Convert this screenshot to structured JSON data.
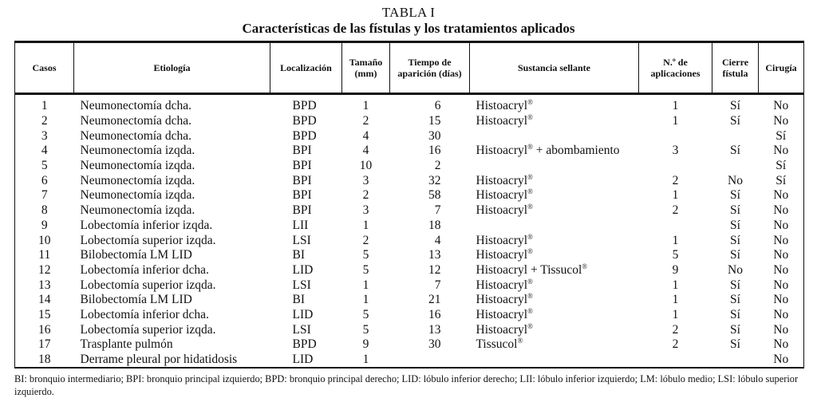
{
  "title": "TABLA I",
  "subtitle": "Características de las fístulas y los tratamientos aplicados",
  "columns": [
    "Casos",
    "Etiología",
    "Localización",
    "Tamaño (mm)",
    "Tiempo de aparición (días)",
    "Sustancia sellante",
    "N.º de aplicaciones",
    "Cierre fístula",
    "Cirugía"
  ],
  "rows": [
    {
      "caso": "1",
      "etiologia": "Neumonectomía dcha.",
      "loc": "BPD",
      "tamano": "1",
      "tiempo": "6",
      "sustancia": "Histoacryl",
      "sup": "®",
      "extra": "",
      "aplic": "1",
      "cierre": "Sí",
      "cirugia": "No"
    },
    {
      "caso": "2",
      "etiologia": "Neumonectomía dcha.",
      "loc": "BPD",
      "tamano": "2",
      "tiempo": "15",
      "sustancia": "Histoacryl",
      "sup": "®",
      "extra": "",
      "aplic": "1",
      "cierre": "Sí",
      "cirugia": "No"
    },
    {
      "caso": "3",
      "etiologia": "Neumonectomía dcha.",
      "loc": "BPD",
      "tamano": "4",
      "tiempo": "30",
      "sustancia": "",
      "sup": "",
      "extra": "",
      "aplic": "",
      "cierre": "",
      "cirugia": "Sí"
    },
    {
      "caso": "4",
      "etiologia": "Neumonectomía izqda.",
      "loc": "BPI",
      "tamano": "4",
      "tiempo": "16",
      "sustancia": "Histoacryl",
      "sup": "®",
      "extra": " + abombamiento",
      "aplic": "3",
      "cierre": "Sí",
      "cirugia": "No"
    },
    {
      "caso": "5",
      "etiologia": "Neumonectomía izqda.",
      "loc": "BPI",
      "tamano": "10",
      "tiempo": "2",
      "sustancia": "",
      "sup": "",
      "extra": "",
      "aplic": "",
      "cierre": "",
      "cirugia": "Sí"
    },
    {
      "caso": "6",
      "etiologia": "Neumonectomía izqda.",
      "loc": "BPI",
      "tamano": "3",
      "tiempo": "32",
      "sustancia": "Histoacryl",
      "sup": "®",
      "extra": "",
      "aplic": "2",
      "cierre": "No",
      "cirugia": "Sí"
    },
    {
      "caso": "7",
      "etiologia": "Neumonectomía izqda.",
      "loc": "BPI",
      "tamano": "2",
      "tiempo": "58",
      "sustancia": "Histoacryl",
      "sup": "®",
      "extra": "",
      "aplic": "1",
      "cierre": "Sí",
      "cirugia": "No"
    },
    {
      "caso": "8",
      "etiologia": "Neumonectomía izqda.",
      "loc": "BPI",
      "tamano": "3",
      "tiempo": "7",
      "sustancia": "Histoacryl",
      "sup": "®",
      "extra": "",
      "aplic": "2",
      "cierre": "Sí",
      "cirugia": "No"
    },
    {
      "caso": "9",
      "etiologia": "Lobectomía inferior izqda.",
      "loc": "LII",
      "tamano": "1",
      "tiempo": "18",
      "sustancia": "",
      "sup": "",
      "extra": "",
      "aplic": "",
      "cierre": "Sí",
      "cirugia": "No"
    },
    {
      "caso": "10",
      "etiologia": "Lobectomía superior izqda.",
      "loc": "LSI",
      "tamano": "2",
      "tiempo": "4",
      "sustancia": "Histoacryl",
      "sup": "®",
      "extra": "",
      "aplic": "1",
      "cierre": "Sí",
      "cirugia": "No"
    },
    {
      "caso": "11",
      "etiologia": "Bilobectomía LM LID",
      "loc": "BI",
      "tamano": "5",
      "tiempo": "13",
      "sustancia": "Histoacryl",
      "sup": "®",
      "extra": "",
      "aplic": "5",
      "cierre": "Sí",
      "cirugia": "No"
    },
    {
      "caso": "12",
      "etiologia": "Lobectomía inferior dcha.",
      "loc": "LID",
      "tamano": "5",
      "tiempo": "12",
      "sustancia": "Histoacryl + Tissucol",
      "sup": "®",
      "extra": "",
      "aplic": "9",
      "cierre": "No",
      "cirugia": "No"
    },
    {
      "caso": "13",
      "etiologia": "Lobectomía superior izqda.",
      "loc": "LSI",
      "tamano": "1",
      "tiempo": "7",
      "sustancia": "Histoacryl",
      "sup": "®",
      "extra": "",
      "aplic": "1",
      "cierre": "Sí",
      "cirugia": "No"
    },
    {
      "caso": "14",
      "etiologia": "Bilobectomía LM LID",
      "loc": "BI",
      "tamano": "1",
      "tiempo": "21",
      "sustancia": "Histoacryl",
      "sup": "®",
      "extra": "",
      "aplic": "1",
      "cierre": "Sí",
      "cirugia": "No"
    },
    {
      "caso": "15",
      "etiologia": "Lobectomía inferior dcha.",
      "loc": "LID",
      "tamano": "5",
      "tiempo": "16",
      "sustancia": "Histoacryl",
      "sup": "®",
      "extra": "",
      "aplic": "1",
      "cierre": "Sí",
      "cirugia": "No"
    },
    {
      "caso": "16",
      "etiologia": "Lobectomía superior izqda.",
      "loc": "LSI",
      "tamano": "5",
      "tiempo": "13",
      "sustancia": "Histoacryl",
      "sup": "®",
      "extra": "",
      "aplic": "2",
      "cierre": "Sí",
      "cirugia": "No"
    },
    {
      "caso": "17",
      "etiologia": "Trasplante pulmón",
      "loc": "BPD",
      "tamano": "9",
      "tiempo": "30",
      "sustancia": "Tissucol",
      "sup": "®",
      "extra": "",
      "aplic": "2",
      "cierre": "Sí",
      "cirugia": "No"
    },
    {
      "caso": "18",
      "etiologia": "Derrame pleural por hidatidosis",
      "loc": "LID",
      "tamano": "1",
      "tiempo": "",
      "sustancia": "",
      "sup": "",
      "extra": "",
      "aplic": "",
      "cierre": "",
      "cirugia": "No"
    }
  ],
  "footnote": "BI: bronquio intermediario; BPI: bronquio principal izquierdo; BPD: bronquio principal derecho; LID: lóbulo inferior derecho;  LII: lóbulo inferior izquierdo; LM: lóbulo medio; LSI: lóbulo superior izquierdo."
}
